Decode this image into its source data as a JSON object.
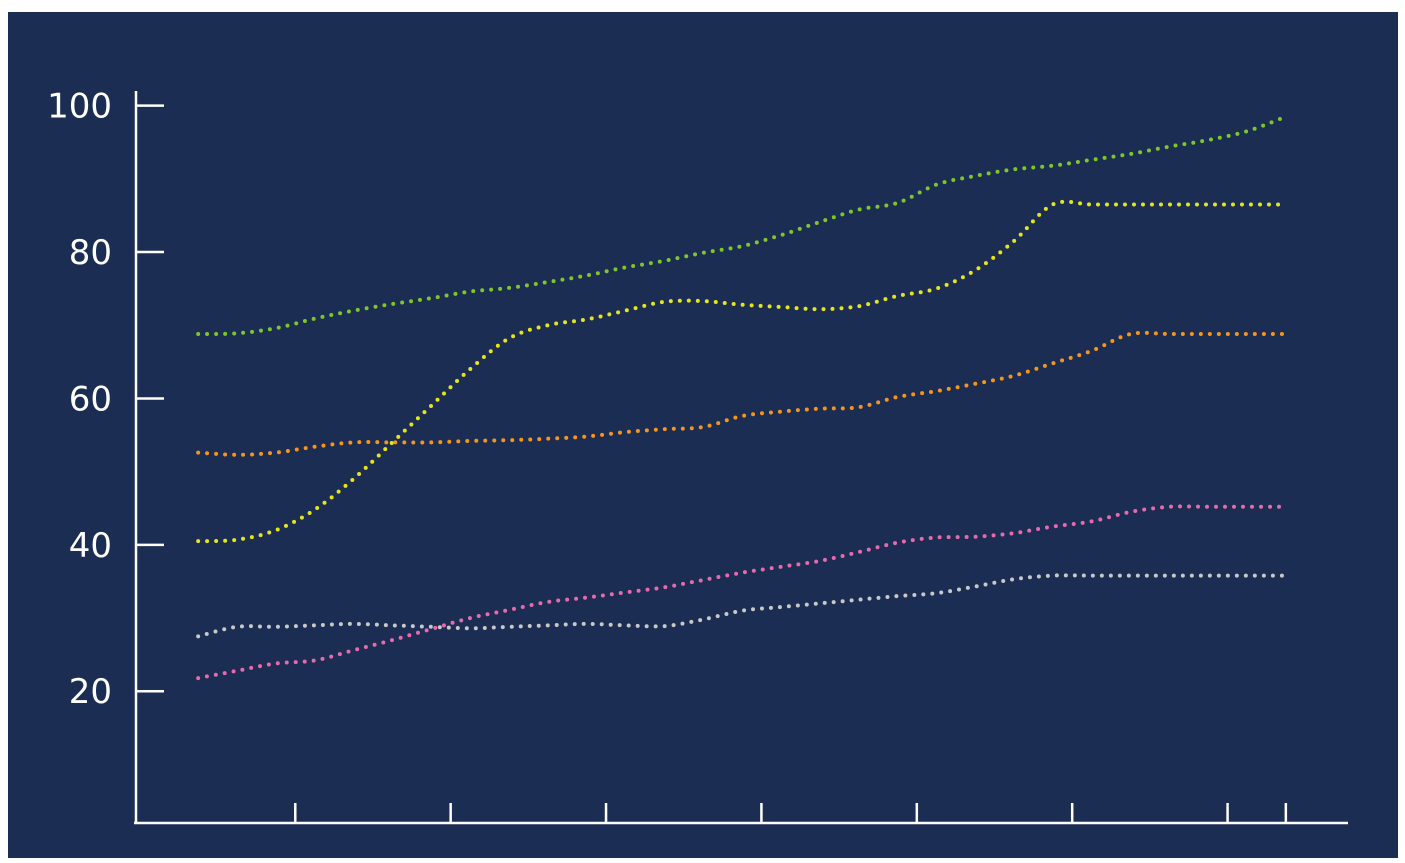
{
  "chart_data": {
    "type": "line",
    "title": "",
    "xlabel": "",
    "ylabel": "",
    "x": [
      0,
      1,
      2,
      3,
      4,
      5,
      6,
      7,
      8,
      9,
      10,
      11,
      12,
      13,
      14,
      15,
      16,
      17,
      18,
      19,
      20,
      21,
      22,
      23,
      24,
      25,
      26,
      27,
      28
    ],
    "xlim": [
      -1.6,
      29.6
    ],
    "ylim": [
      2,
      102
    ],
    "y_ticks": [
      20,
      40,
      60,
      80,
      100
    ],
    "y_tick_labels": [
      "20",
      "40",
      "60",
      "80",
      "100"
    ],
    "x_tick_positions": [
      2.5,
      6.5,
      10.5,
      14.5,
      18.5,
      22.5,
      26.5,
      28.0
    ],
    "grid": false,
    "legend": "none",
    "series": [
      {
        "color": "#7ec629",
        "values": [
          68.8,
          68.9,
          69.6,
          70.9,
          72.0,
          72.9,
          73.7,
          74.6,
          75.1,
          75.9,
          76.8,
          77.9,
          78.8,
          79.9,
          80.8,
          82.3,
          84.1,
          85.8,
          86.7,
          89.2,
          90.4,
          91.3,
          91.8,
          92.6,
          93.4,
          94.4,
          95.3,
          96.5,
          98.5
        ]
      },
      {
        "color": "#e4e61a",
        "values": [
          40.5,
          40.7,
          42.0,
          44.8,
          49.0,
          54.0,
          59.0,
          64.0,
          68.2,
          70.0,
          70.8,
          72.0,
          73.2,
          73.3,
          72.8,
          72.5,
          72.2,
          72.6,
          74.0,
          75.0,
          77.5,
          81.5,
          86.5,
          86.5,
          86.5,
          86.5,
          86.5,
          86.5,
          86.5
        ]
      },
      {
        "color": "#f5951d",
        "values": [
          52.6,
          52.3,
          52.6,
          53.4,
          54.0,
          54.0,
          54.0,
          54.2,
          54.3,
          54.5,
          54.8,
          55.4,
          55.8,
          56.1,
          57.6,
          58.2,
          58.6,
          58.8,
          60.2,
          61.0,
          62.0,
          63.1,
          64.8,
          66.5,
          68.8,
          68.8,
          68.8,
          68.8,
          68.8
        ]
      },
      {
        "color": "#e66aad",
        "values": [
          21.8,
          22.8,
          23.8,
          24.2,
          25.6,
          27.0,
          28.5,
          30.0,
          31.1,
          32.2,
          32.8,
          33.5,
          34.2,
          35.2,
          36.2,
          37.0,
          37.8,
          39.0,
          40.3,
          41.0,
          41.1,
          41.6,
          42.5,
          43.2,
          44.5,
          45.2,
          45.2,
          45.2,
          45.2
        ]
      },
      {
        "color": "#c8c8c8",
        "values": [
          27.5,
          28.8,
          28.8,
          29.0,
          29.2,
          29.0,
          28.8,
          28.6,
          28.8,
          29.0,
          29.2,
          29.0,
          28.9,
          29.8,
          31.0,
          31.5,
          32.0,
          32.5,
          33.0,
          33.4,
          34.3,
          35.3,
          35.8,
          35.8,
          35.8,
          35.8,
          35.8,
          35.8,
          35.8
        ]
      }
    ]
  }
}
